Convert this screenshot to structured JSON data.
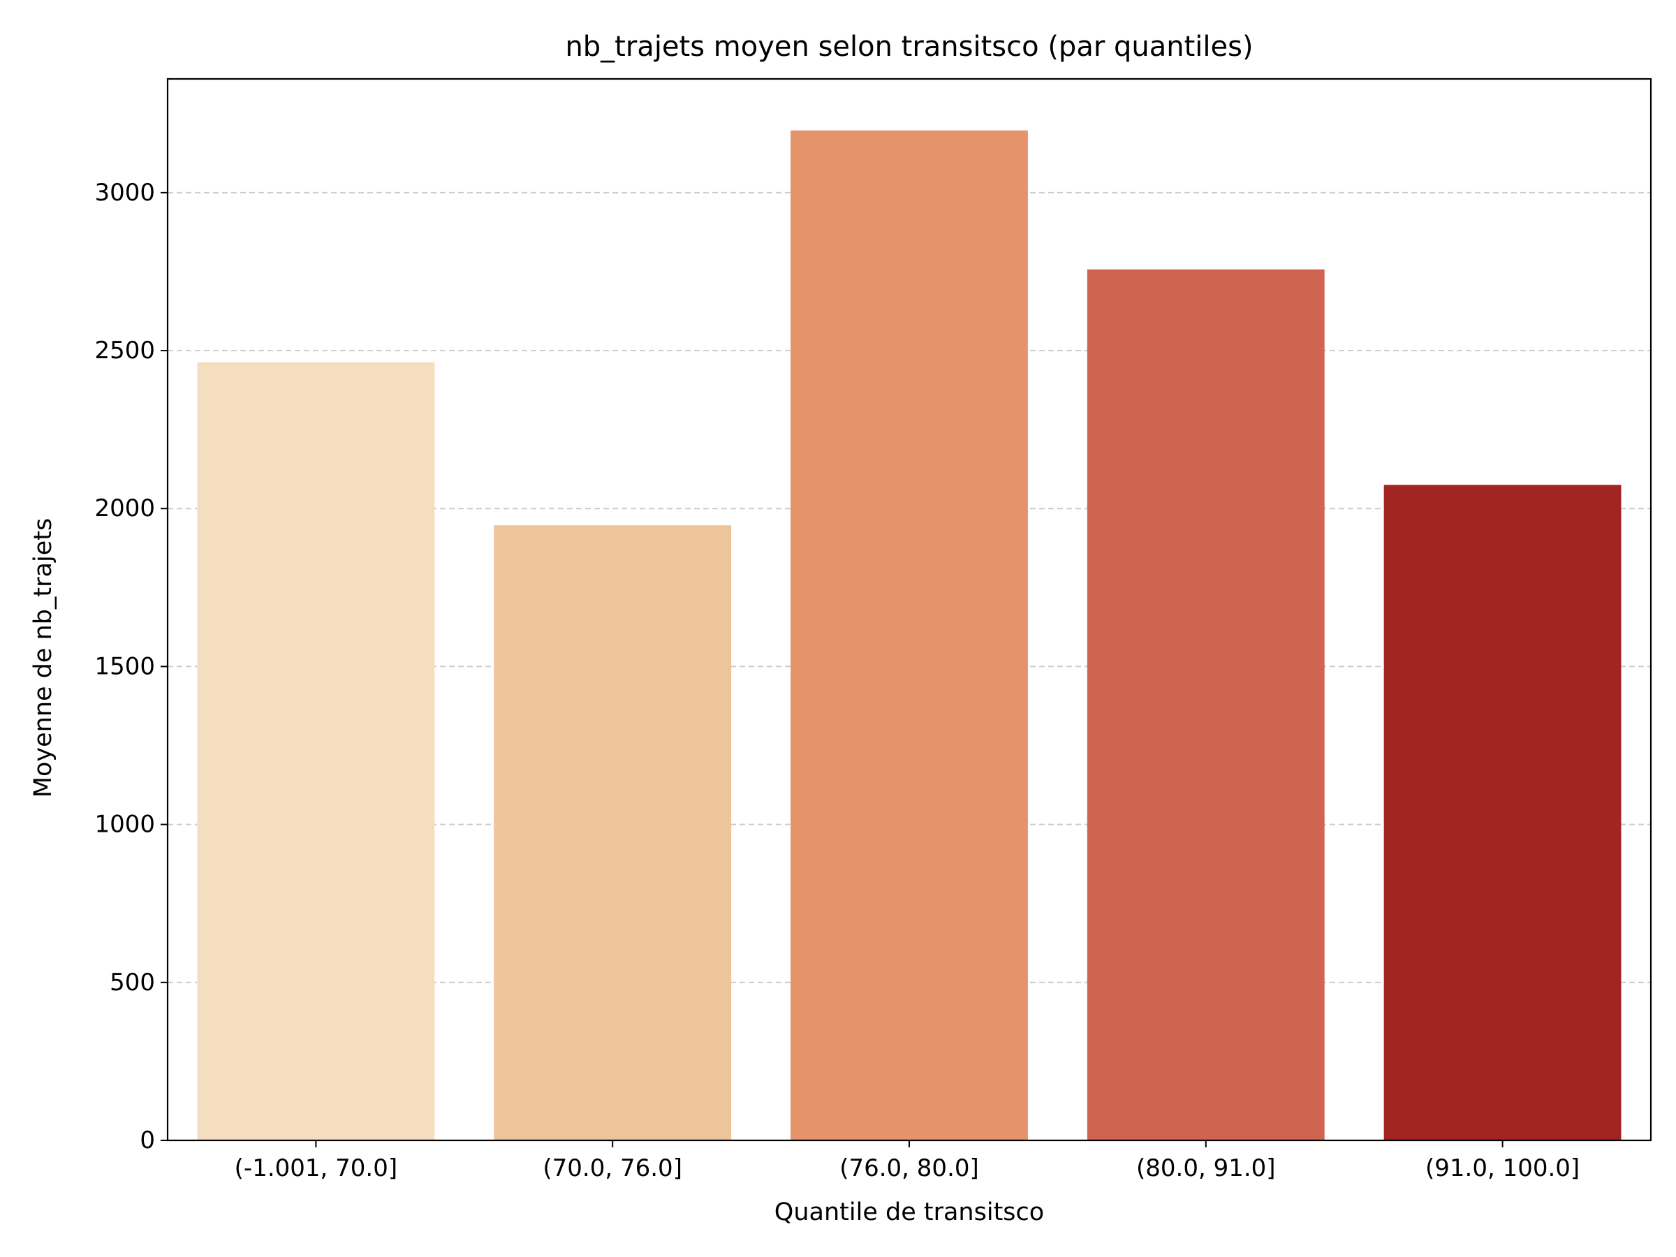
{
  "chart_data": {
    "type": "bar",
    "title": "nb_trajets moyen selon transitsco (par quantiles)",
    "xlabel": "Quantile de transitsco",
    "ylabel": "Moyenne de nb_trajets",
    "categories": [
      "(-1.001, 70.0]",
      "(70.0, 76.0]",
      "(76.0, 80.0]",
      "(80.0, 91.0]",
      "(91.0, 100.0]"
    ],
    "values": [
      2463,
      1947,
      3197,
      2757,
      2075
    ],
    "colors": [
      "#f5dec0",
      "#eec49a",
      "#e5936b",
      "#d16450",
      "#a32523"
    ],
    "ylim": [
      0,
      3360
    ],
    "yticks": [
      0,
      500,
      1000,
      1500,
      2000,
      2500,
      3000
    ],
    "grid": "y-dashed",
    "legend": "none"
  }
}
